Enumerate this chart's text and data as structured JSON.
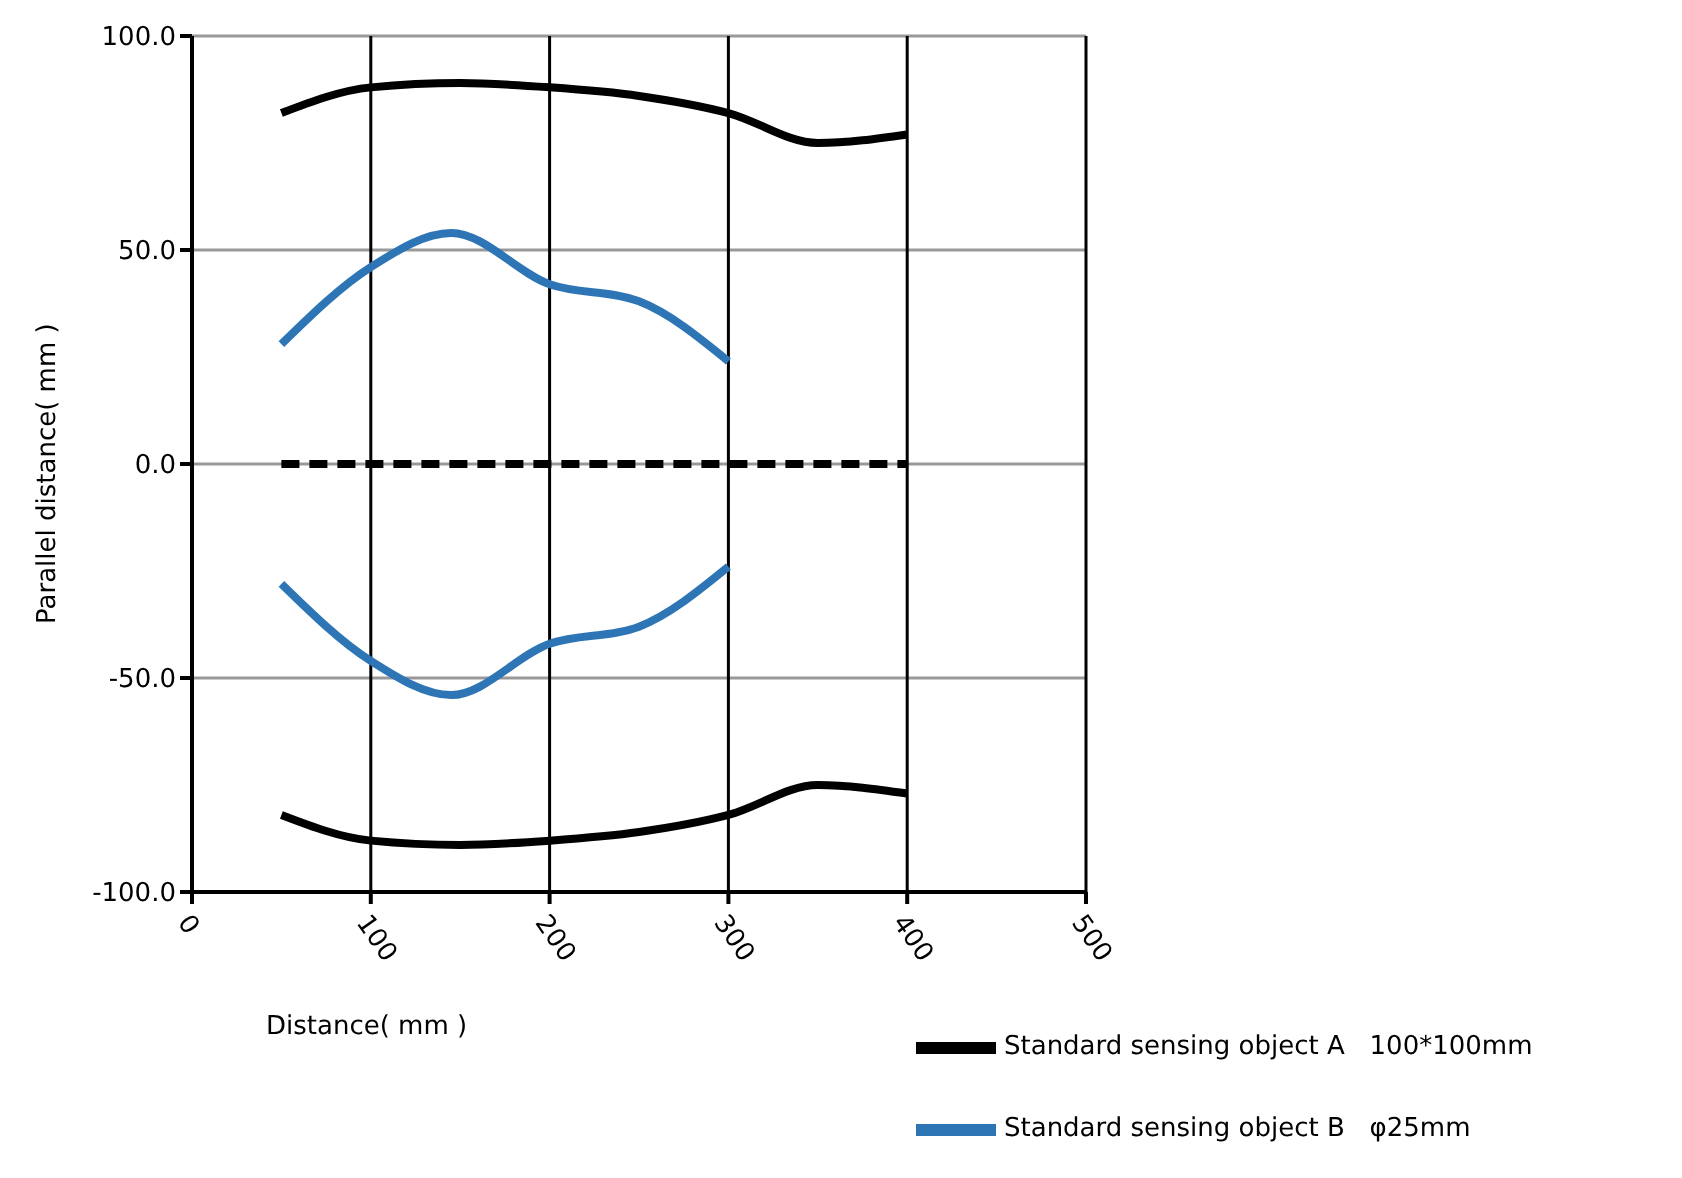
{
  "chart_data": {
    "type": "line",
    "xlabel": "Distance( mm )",
    "ylabel": "Parallel distance( mm )",
    "xlim": [
      0,
      500
    ],
    "xticks": [
      0,
      100,
      200,
      300,
      400,
      500
    ],
    "ylim": [
      -100,
      100
    ],
    "yticks": [
      {
        "value": -100,
        "label": "-100.0"
      },
      {
        "value": -50,
        "label": "-50.0"
      },
      {
        "value": 0,
        "label": "0.0"
      },
      {
        "value": 50,
        "label": "50.0"
      },
      {
        "value": 100,
        "label": "100.0"
      }
    ],
    "grid": true,
    "legend": "bottom right",
    "marker": "none",
    "line_style": "solid",
    "series": [
      {
        "name": "Standard sensing object A   100*100mm",
        "color": "#000000",
        "x": [
          50,
          100,
          150,
          200,
          250,
          300,
          350,
          400
        ],
        "values": [
          82,
          88,
          89,
          88,
          86,
          82,
          75,
          77
        ]
      },
      {
        "color": "#000000",
        "x": [
          50,
          100,
          150,
          200,
          250,
          300,
          350,
          400
        ],
        "values": [
          -82,
          -88,
          -89,
          -88,
          -86,
          -82,
          -75,
          -77
        ]
      },
      {
        "name": "Standard sensing object B   φ25mm",
        "color": "#2e75b6",
        "x": [
          50,
          100,
          145,
          200,
          250,
          300
        ],
        "values": [
          28,
          46,
          54,
          42,
          38,
          24
        ]
      },
      {
        "color": "#2e75b6",
        "x": [
          50,
          100,
          145,
          200,
          250,
          300
        ],
        "values": [
          -28,
          -46,
          -54,
          -42,
          -38,
          -24
        ]
      },
      {
        "color": "#000000",
        "line_style": "dashed",
        "x": [
          50,
          400
        ],
        "values": [
          0,
          0
        ]
      }
    ]
  }
}
